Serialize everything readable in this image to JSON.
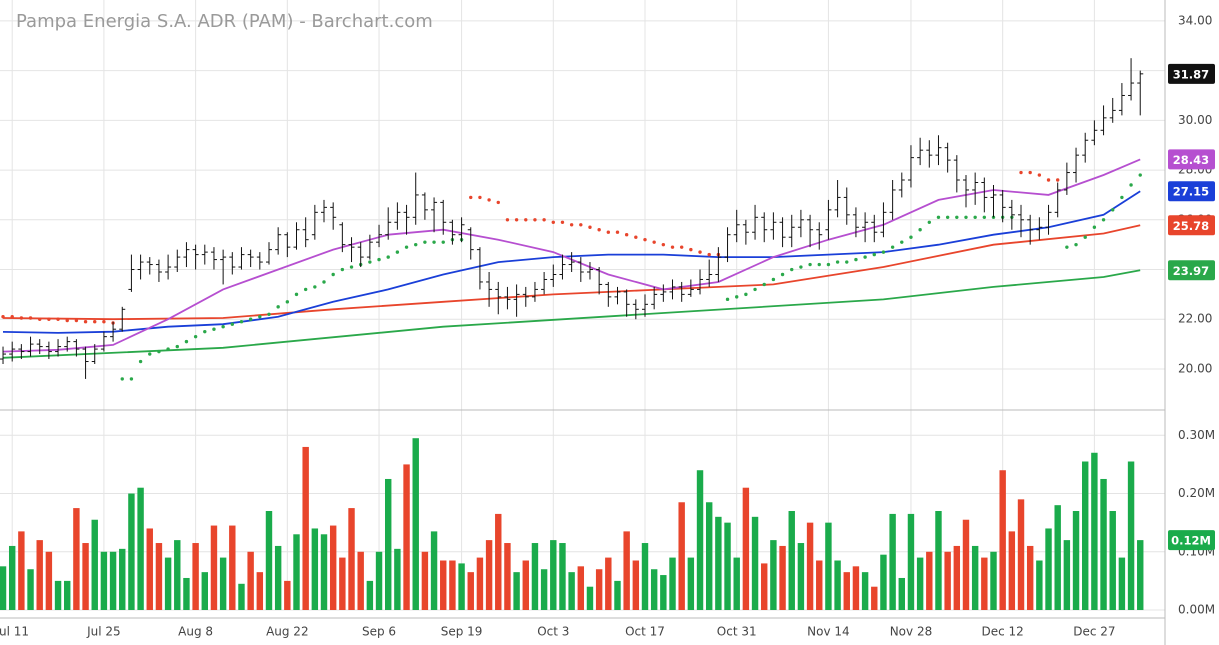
{
  "chart_data": {
    "type": "ohlc",
    "title": "Pampa Energia S.A. ADR (PAM) - Barchart.com",
    "color": "#111111",
    "xlim": [
      -0.33,
      126.7
    ],
    "xticks": [
      {
        "value": 1,
        "label": "Jul 11"
      },
      {
        "value": 11,
        "label": "Jul 25"
      },
      {
        "value": 21,
        "label": "Aug 8"
      },
      {
        "value": 31,
        "label": "Aug 22"
      },
      {
        "value": 41,
        "label": "Sep 6"
      },
      {
        "value": 50,
        "label": "Sep 19"
      },
      {
        "value": 60,
        "label": "Oct 3"
      },
      {
        "value": 70,
        "label": "Oct 17"
      },
      {
        "value": 80,
        "label": "Oct 31"
      },
      {
        "value": 90,
        "label": "Nov 14"
      },
      {
        "value": 99,
        "label": "Nov 28"
      },
      {
        "value": 109,
        "label": "Dec 12"
      },
      {
        "value": 119,
        "label": "Dec 27"
      }
    ],
    "ylim": [
      18.35,
      34.84
    ],
    "yticks": [
      {
        "value": 20,
        "label": "20.00"
      },
      {
        "value": 22,
        "label": "22.00"
      },
      {
        "value": 24,
        "label": "24.00"
      },
      {
        "value": 26,
        "label": "26.00"
      },
      {
        "value": 28,
        "label": "28.00"
      },
      {
        "value": 30,
        "label": "30.00"
      },
      {
        "value": 32,
        "label": "32.00"
      },
      {
        "value": 34,
        "label": "34.00"
      }
    ],
    "grid": true,
    "open": [
      20.4,
      20.6,
      20.8,
      20.7,
      21.0,
      20.9,
      20.7,
      20.9,
      21.1,
      20.8,
      20.3,
      20.8,
      21.3,
      21.6,
      23.2,
      24.0,
      24.3,
      24.2,
      23.9,
      24.1,
      24.5,
      24.8,
      24.6,
      24.7,
      24.4,
      24.5,
      24.1,
      24.6,
      24.5,
      24.3,
      24.8,
      25.4,
      24.9,
      25.6,
      25.4,
      26.3,
      26.5,
      25.8,
      25.0,
      24.9,
      24.5,
      25.1,
      25.4,
      25.9,
      26.3,
      26.1,
      27.0,
      26.4,
      26.7,
      25.9,
      25.4,
      25.6,
      24.8,
      23.5,
      23.2,
      22.9,
      22.8,
      23.0,
      22.9,
      23.2,
      23.6,
      23.8,
      24.2,
      24.3,
      23.9,
      24.0,
      23.4,
      22.9,
      23.1,
      22.6,
      22.4,
      22.6,
      23.0,
      23.1,
      23.3,
      23.0,
      23.2,
      23.6,
      23.8,
      24.5,
      25.4,
      25.8,
      25.5,
      26.1,
      25.6,
      25.9,
      25.3,
      25.7,
      26.0,
      25.6,
      25.6,
      26.4,
      26.9,
      26.2,
      25.7,
      25.9,
      25.5,
      26.3,
      27.2,
      27.6,
      28.5,
      28.8,
      28.6,
      28.9,
      28.4,
      27.6,
      27.2,
      27.5,
      26.9,
      27.0,
      26.5,
      26.2,
      26.0,
      25.6,
      25.7,
      26.3,
      27.2,
      27.9,
      28.6,
      29.2,
      29.6,
      30.1,
      30.4,
      31.0,
      31.5
    ],
    "high": [
      20.9,
      21.1,
      21.0,
      21.3,
      21.2,
      21.1,
      21.2,
      21.3,
      21.2,
      20.9,
      21.0,
      21.5,
      21.9,
      22.5,
      24.6,
      24.6,
      24.5,
      24.4,
      24.6,
      24.8,
      25.1,
      25.0,
      25.0,
      24.9,
      24.8,
      24.7,
      24.9,
      24.8,
      24.7,
      25.1,
      25.7,
      25.5,
      25.9,
      26.1,
      26.6,
      26.8,
      26.7,
      25.9,
      25.3,
      25.1,
      25.4,
      25.8,
      26.5,
      26.7,
      26.6,
      27.9,
      27.1,
      26.9,
      26.8,
      26.0,
      26.1,
      25.7,
      24.9,
      23.9,
      23.5,
      23.3,
      23.4,
      23.3,
      23.5,
      23.9,
      24.2,
      24.6,
      24.7,
      24.5,
      24.3,
      24.1,
      23.5,
      23.3,
      23.2,
      22.8,
      23.0,
      23.3,
      23.4,
      23.6,
      23.5,
      23.6,
      24.0,
      24.4,
      24.9,
      25.7,
      26.4,
      26.0,
      26.6,
      26.3,
      26.3,
      26.1,
      26.2,
      26.4,
      26.2,
      25.9,
      26.8,
      27.6,
      27.3,
      26.5,
      26.3,
      26.2,
      26.7,
      27.6,
      27.9,
      29.0,
      29.3,
      29.2,
      29.4,
      29.1,
      28.6,
      27.8,
      27.9,
      27.7,
      27.4,
      27.2,
      26.8,
      26.6,
      26.2,
      26.1,
      26.6,
      27.5,
      28.3,
      28.9,
      29.5,
      30.0,
      30.6,
      30.9,
      31.5,
      32.5,
      32.0
    ],
    "low": [
      20.2,
      20.3,
      20.4,
      20.5,
      20.6,
      20.4,
      20.5,
      20.7,
      20.5,
      19.6,
      20.2,
      20.7,
      21.1,
      21.5,
      23.1,
      23.6,
      23.8,
      23.5,
      23.6,
      23.9,
      24.1,
      24.0,
      24.2,
      24.0,
      23.4,
      23.8,
      24.0,
      24.1,
      24.0,
      24.2,
      24.6,
      24.5,
      24.8,
      24.9,
      25.2,
      25.9,
      25.6,
      24.7,
      24.3,
      24.1,
      24.4,
      24.9,
      25.2,
      25.6,
      25.4,
      25.8,
      26.0,
      25.5,
      25.4,
      25.0,
      25.1,
      24.4,
      23.2,
      22.5,
      22.2,
      22.4,
      22.1,
      22.5,
      22.7,
      23.0,
      23.3,
      23.6,
      23.9,
      23.5,
      23.6,
      23.0,
      22.5,
      22.6,
      22.1,
      22.0,
      22.1,
      22.4,
      22.7,
      22.8,
      22.7,
      22.9,
      23.0,
      23.3,
      23.5,
      24.3,
      25.1,
      25.0,
      25.2,
      25.1,
      25.2,
      24.9,
      24.9,
      25.3,
      24.9,
      24.8,
      25.2,
      26.1,
      25.8,
      25.3,
      25.1,
      25.1,
      25.3,
      26.0,
      26.9,
      27.3,
      28.2,
      28.1,
      28.2,
      27.9,
      27.1,
      26.5,
      26.6,
      26.3,
      26.1,
      25.9,
      25.6,
      25.3,
      25.0,
      25.2,
      25.4,
      26.1,
      27.0,
      27.5,
      28.3,
      29.0,
      29.4,
      29.9,
      30.2,
      30.8,
      30.2
    ],
    "close": [
      20.6,
      20.8,
      20.7,
      21.0,
      20.9,
      20.7,
      20.9,
      21.1,
      20.8,
      20.3,
      20.8,
      21.3,
      21.6,
      22.4,
      24.0,
      24.3,
      24.2,
      23.9,
      24.1,
      24.5,
      24.8,
      24.6,
      24.7,
      24.4,
      24.5,
      24.1,
      24.6,
      24.5,
      24.3,
      24.8,
      25.4,
      24.9,
      25.6,
      25.2,
      26.3,
      26.5,
      26.1,
      25.0,
      24.9,
      24.5,
      25.1,
      25.4,
      25.9,
      26.3,
      26.1,
      27.0,
      26.4,
      26.7,
      25.9,
      25.4,
      25.8,
      24.8,
      23.5,
      23.2,
      22.9,
      22.8,
      23.0,
      22.9,
      23.2,
      23.6,
      23.8,
      24.2,
      24.3,
      23.9,
      24.0,
      23.4,
      22.9,
      23.1,
      22.6,
      22.4,
      22.6,
      23.0,
      23.1,
      23.3,
      23.0,
      23.2,
      23.6,
      23.8,
      24.5,
      25.4,
      25.8,
      25.5,
      26.1,
      25.6,
      25.9,
      25.3,
      25.7,
      26.0,
      25.6,
      25.4,
      26.4,
      26.9,
      26.2,
      25.7,
      25.9,
      25.5,
      26.3,
      27.2,
      27.6,
      28.5,
      28.8,
      28.6,
      28.9,
      28.4,
      27.6,
      27.2,
      27.5,
      26.9,
      27.0,
      26.5,
      26.2,
      26.0,
      25.6,
      25.7,
      26.3,
      27.2,
      27.9,
      28.6,
      29.2,
      29.6,
      30.1,
      30.4,
      31.0,
      31.5,
      31.87
    ],
    "overlays": [
      {
        "color": "#2aa84a",
        "x": [
          0,
          24,
          48,
          72,
          96,
          108,
          120,
          124
        ],
        "values": [
          20.45,
          20.85,
          21.7,
          22.25,
          22.8,
          23.3,
          23.7,
          23.97
        ]
      },
      {
        "color": "#e8452c",
        "x": [
          0,
          12,
          24,
          36,
          48,
          60,
          72,
          84,
          96,
          108,
          120,
          124
        ],
        "values": [
          22.05,
          22.0,
          22.05,
          22.4,
          22.7,
          23.0,
          23.2,
          23.4,
          24.1,
          25.0,
          25.45,
          25.78
        ]
      },
      {
        "color": "#1a3fd8",
        "x": [
          0,
          6,
          12,
          18,
          24,
          30,
          36,
          42,
          48,
          54,
          60,
          66,
          72,
          78,
          84,
          90,
          96,
          102,
          108,
          114,
          120,
          124
        ],
        "values": [
          21.49,
          21.45,
          21.5,
          21.7,
          21.8,
          22.1,
          22.7,
          23.2,
          23.8,
          24.3,
          24.5,
          24.6,
          24.6,
          24.5,
          24.5,
          24.6,
          24.7,
          25.0,
          25.4,
          25.7,
          26.2,
          27.15
        ]
      },
      {
        "color": "#b64fd0",
        "x": [
          0,
          6,
          12,
          18,
          24,
          30,
          36,
          42,
          48,
          54,
          60,
          66,
          72,
          78,
          84,
          90,
          96,
          102,
          108,
          114,
          120,
          124
        ],
        "values": [
          20.7,
          20.77,
          20.97,
          22.0,
          23.2,
          24.0,
          24.8,
          25.4,
          25.6,
          25.2,
          24.7,
          23.8,
          23.2,
          23.5,
          24.5,
          25.2,
          25.8,
          26.8,
          27.2,
          27.0,
          27.8,
          28.43
        ]
      }
    ],
    "sar": {
      "up_color": "#2aa84a",
      "down_color": "#e8452c",
      "values": [
        22.1,
        22.1,
        22.05,
        22.05,
        22.0,
        22.0,
        22.0,
        21.95,
        21.95,
        21.9,
        21.9,
        21.9,
        21.85,
        19.6,
        19.6,
        20.3,
        20.6,
        20.7,
        20.8,
        20.9,
        21.1,
        21.3,
        21.5,
        21.6,
        21.7,
        21.8,
        21.9,
        22.0,
        22.1,
        22.2,
        22.5,
        22.7,
        23.0,
        23.2,
        23.3,
        23.5,
        23.8,
        24.0,
        24.1,
        24.2,
        24.3,
        24.4,
        24.5,
        24.7,
        24.9,
        25.0,
        25.1,
        25.1,
        25.1,
        25.2,
        25.2,
        26.9,
        26.9,
        26.8,
        26.7,
        26.0,
        26.0,
        26.0,
        26.0,
        26.0,
        25.9,
        25.9,
        25.8,
        25.8,
        25.7,
        25.6,
        25.5,
        25.5,
        25.4,
        25.3,
        25.2,
        25.1,
        25.0,
        24.9,
        24.9,
        24.8,
        24.7,
        24.6,
        24.6,
        22.8,
        22.9,
        23.0,
        23.2,
        23.4,
        23.6,
        23.8,
        24.0,
        24.1,
        24.2,
        24.2,
        24.2,
        24.3,
        24.3,
        24.4,
        24.5,
        24.6,
        24.7,
        24.9,
        25.1,
        25.3,
        25.6,
        25.9,
        26.1,
        26.1,
        26.1,
        26.1,
        26.1,
        26.1,
        26.1,
        26.1,
        26.1,
        27.9,
        27.9,
        27.8,
        27.6,
        27.6,
        24.9,
        25.0,
        25.3,
        25.7,
        26.0,
        26.4,
        26.9,
        27.4,
        27.8
      ]
    },
    "volume": {
      "up_color": "#1aab4b",
      "down_color": "#e8452c",
      "ylim": [
        0,
        0.34
      ],
      "yticks": [
        {
          "value": 0,
          "label": "0.00M"
        },
        {
          "value": 0.1,
          "label": "0.10M"
        },
        {
          "value": 0.2,
          "label": "0.20M"
        },
        {
          "value": 0.3,
          "label": "0.30M"
        }
      ],
      "values": [
        0.075,
        0.11,
        0.135,
        0.07,
        0.12,
        0.1,
        0.05,
        0.05,
        0.175,
        0.115,
        0.155,
        0.1,
        0.1,
        0.105,
        0.2,
        0.21,
        0.14,
        0.115,
        0.09,
        0.12,
        0.055,
        0.115,
        0.065,
        0.145,
        0.09,
        0.145,
        0.045,
        0.1,
        0.065,
        0.17,
        0.11,
        0.05,
        0.13,
        0.28,
        0.14,
        0.13,
        0.145,
        0.09,
        0.175,
        0.1,
        0.05,
        0.1,
        0.225,
        0.105,
        0.25,
        0.295,
        0.1,
        0.135,
        0.085,
        0.085,
        0.08,
        0.065,
        0.09,
        0.12,
        0.165,
        0.115,
        0.065,
        0.085,
        0.115,
        0.07,
        0.12,
        0.115,
        0.065,
        0.075,
        0.04,
        0.07,
        0.09,
        0.05,
        0.135,
        0.085,
        0.115,
        0.07,
        0.06,
        0.09,
        0.185,
        0.09,
        0.24,
        0.185,
        0.16,
        0.15,
        0.09,
        0.21,
        0.16,
        0.08,
        0.12,
        0.11,
        0.17,
        0.115,
        0.15,
        0.085,
        0.15,
        0.085,
        0.065,
        0.075,
        0.065,
        0.04,
        0.095,
        0.165,
        0.055,
        0.165,
        0.09,
        0.1,
        0.17,
        0.1,
        0.11,
        0.155,
        0.11,
        0.09,
        0.1,
        0.24,
        0.135,
        0.19,
        0.11,
        0.085,
        0.14,
        0.18,
        0.12,
        0.17,
        0.255,
        0.27,
        0.225,
        0.17,
        0.09,
        0.255,
        0.12
      ],
      "last_label": "0.12M"
    }
  }
}
